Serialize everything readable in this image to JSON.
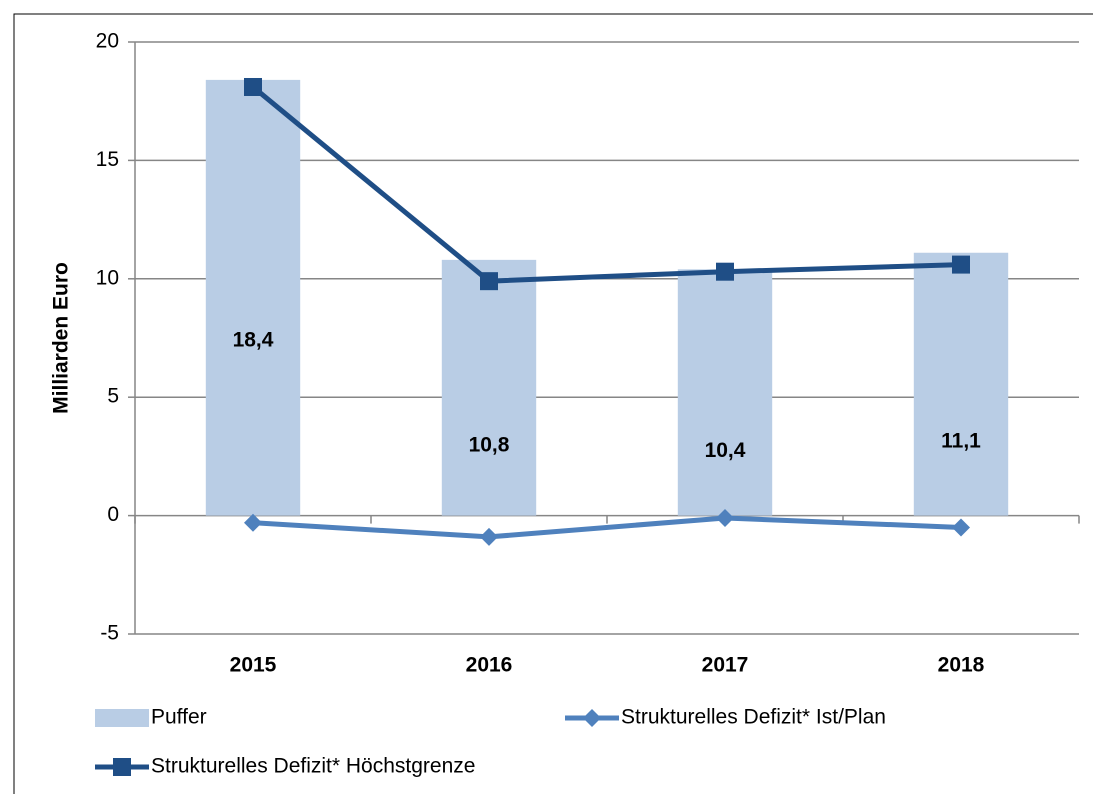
{
  "chart_data": {
    "type": "bar",
    "ylabel": "Milliarden Euro",
    "categories": [
      "2015",
      "2016",
      "2017",
      "2018"
    ],
    "series": [
      {
        "name": "Puffer",
        "type": "bar",
        "color": "#b9cde5",
        "values": [
          18.4,
          10.8,
          10.4,
          11.1
        ],
        "value_labels": [
          "18,4",
          "10,8",
          "10,4",
          "11,1"
        ]
      },
      {
        "name": "Strukturelles Defizit* Ist/Plan",
        "type": "line",
        "marker": "diamond",
        "color": "#4f81bd",
        "values": [
          -0.3,
          -0.9,
          -0.1,
          -0.5
        ]
      },
      {
        "name": "Strukturelles Defizit* Höchstgrenze",
        "type": "line",
        "marker": "square",
        "color": "#1f4e86",
        "values": [
          18.1,
          9.9,
          10.3,
          10.6
        ]
      }
    ],
    "ylim": [
      -5,
      20
    ],
    "yticks": [
      -5,
      0,
      5,
      10,
      15,
      20
    ],
    "grid": true
  }
}
